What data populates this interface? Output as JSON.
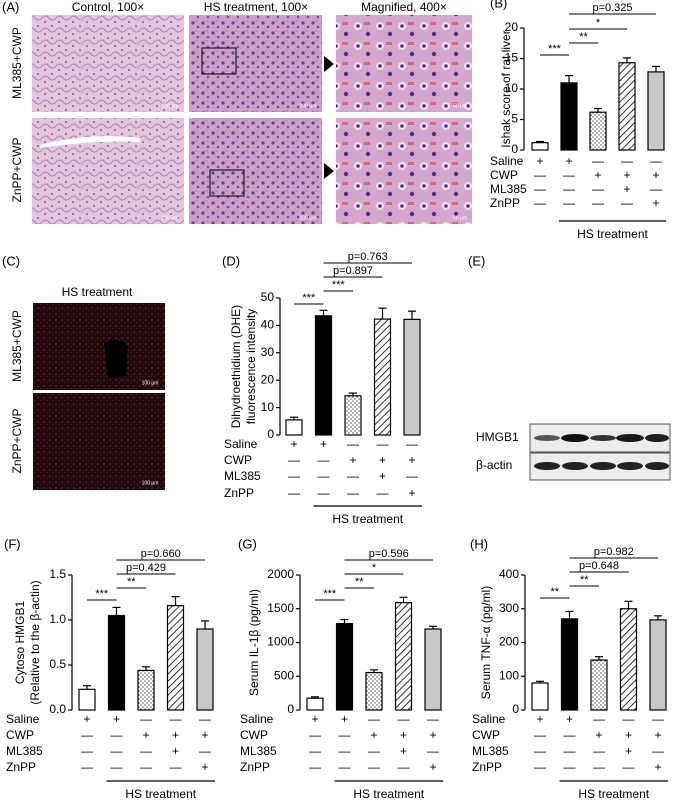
{
  "panel_a": {
    "label": "(A)",
    "columns": [
      "Control, 100×",
      "HS treatment, 100×",
      "Magnified, 400×"
    ],
    "rows": [
      "ML385+CWP",
      "ZnPP+CWP"
    ],
    "scale_bars": [
      "200 μm",
      "200 μm",
      "50 μm"
    ]
  },
  "panel_c": {
    "label": "(C)",
    "title": "HS treatment",
    "rows": [
      "ML385+CWP",
      "ZnPP+CWP"
    ],
    "scale_bar": "100 μm"
  },
  "panel_e": {
    "label": "(E)",
    "bands": [
      "HMGB1",
      "β-actin"
    ]
  },
  "chart_data": [
    {
      "type": "bar",
      "label": "(B)",
      "ylabel": [
        "Ishak score of rat liver"
      ],
      "values": [
        1.2,
        11,
        6.2,
        14.3,
        12.8
      ],
      "errors": [
        0.2,
        1.2,
        0.6,
        0.8,
        0.9
      ],
      "ylim": [
        0,
        20
      ],
      "yticks": [
        0,
        5,
        10,
        15,
        20
      ],
      "bar_fills": [
        "#ffffff",
        "#000000",
        "dots",
        "hatch",
        "#c8c8c8"
      ],
      "annotations": [
        "***",
        "**",
        "*",
        "p=0.325"
      ],
      "treatments": [
        {
          "name": "Saline",
          "signs": [
            "+",
            "+",
            "—",
            "—",
            "—"
          ]
        },
        {
          "name": "CWP",
          "signs": [
            "—",
            "—",
            "+",
            "+",
            "+"
          ]
        },
        {
          "name": "ML385",
          "signs": [
            "—",
            "—",
            "—",
            "+",
            "—"
          ]
        },
        {
          "name": "ZnPP",
          "signs": [
            "—",
            "—",
            "—",
            "—",
            "+"
          ]
        }
      ],
      "group_label": "HS treatment"
    },
    {
      "type": "bar",
      "label": "(D)",
      "ylabel": [
        "Dihydroethidium (DHE)",
        "fluorescence intensity"
      ],
      "values": [
        5.5,
        43.5,
        14.3,
        42.3,
        42.2
      ],
      "errors": [
        1,
        2,
        1,
        4,
        3
      ],
      "ylim": [
        0,
        50
      ],
      "yticks": [
        0,
        10,
        20,
        30,
        40,
        50
      ],
      "bar_fills": [
        "#ffffff",
        "#000000",
        "dots",
        "hatch",
        "#c8c8c8"
      ],
      "annotations": [
        "***",
        "***",
        "p=0.897",
        "p=0.763"
      ],
      "treatments": [
        {
          "name": "Saline",
          "signs": [
            "+",
            "+",
            "—",
            "—",
            "—"
          ]
        },
        {
          "name": "CWP",
          "signs": [
            "—",
            "—",
            "+",
            "+",
            "+"
          ]
        },
        {
          "name": "ML385",
          "signs": [
            "—",
            "—",
            "—",
            "+",
            "—"
          ]
        },
        {
          "name": "ZnPP",
          "signs": [
            "—",
            "—",
            "—",
            "—",
            "+"
          ]
        }
      ],
      "group_label": "HS treatment"
    },
    {
      "type": "bar",
      "label": "(F)",
      "ylabel": [
        "Cytoso HMGB1",
        "(Relative to the β-actin)"
      ],
      "values": [
        0.23,
        1.05,
        0.44,
        1.16,
        0.9
      ],
      "errors": [
        0.04,
        0.09,
        0.04,
        0.1,
        0.09
      ],
      "ylim": [
        0,
        1.5
      ],
      "yticks": [
        {
          "value": 0,
          "label": "0.0"
        },
        0.5,
        {
          "value": 1,
          "label": "1.0"
        },
        1.5
      ],
      "bar_fills": [
        "#ffffff",
        "#000000",
        "dots",
        "hatch",
        "#c8c8c8"
      ],
      "annotations": [
        "***",
        "**",
        "p=0.429",
        "p=0.660"
      ],
      "treatments": [
        {
          "name": "Saline",
          "signs": [
            "+",
            "+",
            "—",
            "—",
            "—"
          ]
        },
        {
          "name": "CWP",
          "signs": [
            "—",
            "—",
            "+",
            "+",
            "+"
          ]
        },
        {
          "name": "ML385",
          "signs": [
            "—",
            "—",
            "—",
            "+",
            "—"
          ]
        },
        {
          "name": "ZnPP",
          "signs": [
            "—",
            "—",
            "—",
            "—",
            "+"
          ]
        }
      ],
      "group_label": "HS treatment"
    },
    {
      "type": "bar",
      "label": "(G)",
      "ylabel": [
        "Serum IL-1β (pg/ml)"
      ],
      "values": [
        175,
        1280,
        555,
        1590,
        1200
      ],
      "errors": [
        20,
        60,
        40,
        80,
        40
      ],
      "ylim": [
        0,
        2000
      ],
      "yticks": [
        0,
        500,
        1000,
        1500,
        2000
      ],
      "bar_fills": [
        "#ffffff",
        "#000000",
        "dots",
        "hatch",
        "#c8c8c8"
      ],
      "annotations": [
        "***",
        "**",
        "*",
        "p=0.596"
      ],
      "treatments": [
        {
          "name": "Saline",
          "signs": [
            "+",
            "+",
            "—",
            "—",
            "—"
          ]
        },
        {
          "name": "CWP",
          "signs": [
            "—",
            "—",
            "+",
            "+",
            "+"
          ]
        },
        {
          "name": "ML385",
          "signs": [
            "—",
            "—",
            "—",
            "+",
            "—"
          ]
        },
        {
          "name": "ZnPP",
          "signs": [
            "—",
            "—",
            "—",
            "—",
            "+"
          ]
        }
      ],
      "group_label": "HS treatment"
    },
    {
      "type": "bar",
      "label": "(H)",
      "ylabel": [
        "Serum TNF-α (pg/ml)"
      ],
      "values": [
        80,
        270,
        148,
        300,
        267
      ],
      "errors": [
        5,
        22,
        10,
        22,
        12
      ],
      "ylim": [
        0,
        400
      ],
      "yticks": [
        0,
        100,
        200,
        300,
        400
      ],
      "bar_fills": [
        "#ffffff",
        "#000000",
        "dots",
        "hatch",
        "#c8c8c8"
      ],
      "annotations": [
        "**",
        "**",
        "p=0.648",
        "p=0.982"
      ],
      "treatments": [
        {
          "name": "Saline",
          "signs": [
            "+",
            "+",
            "—",
            "—",
            "—"
          ]
        },
        {
          "name": "CWP",
          "signs": [
            "—",
            "—",
            "+",
            "+",
            "+"
          ]
        },
        {
          "name": "ML385",
          "signs": [
            "—",
            "—",
            "—",
            "+",
            "—"
          ]
        },
        {
          "name": "ZnPP",
          "signs": [
            "—",
            "—",
            "—",
            "—",
            "+"
          ]
        }
      ],
      "group_label": "HS treatment"
    }
  ]
}
